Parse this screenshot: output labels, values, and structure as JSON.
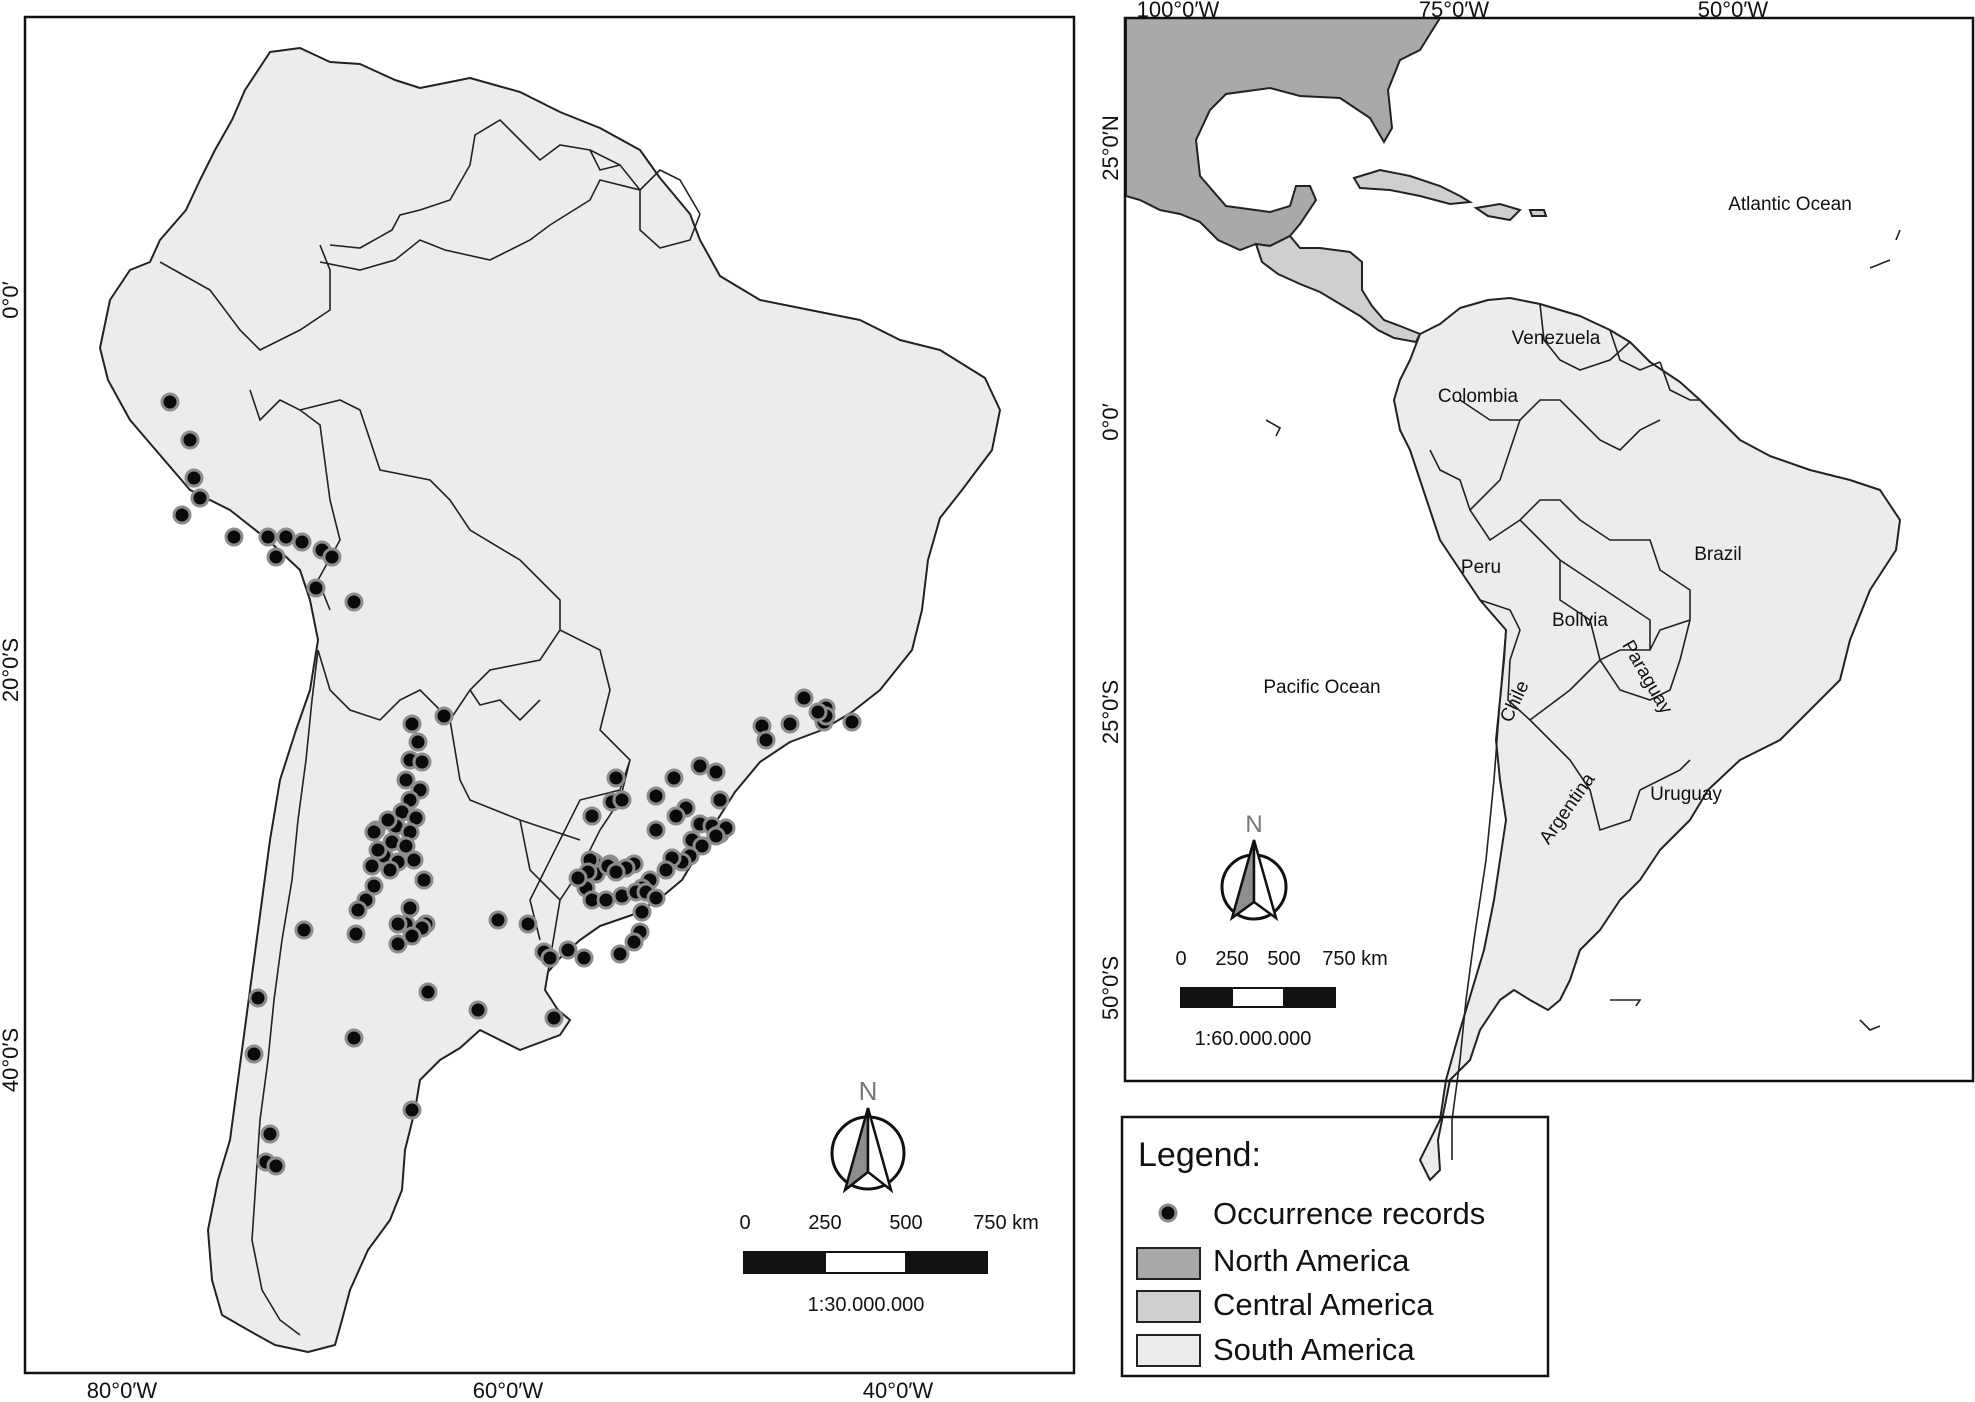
{
  "left_map": {
    "lon_labels": [
      "80°0′W",
      "60°0′W",
      "40°0′W"
    ],
    "lat_labels": [
      "0°0′",
      "20°0′S",
      "40°0′S"
    ],
    "north_label": "N",
    "scale_ticks": [
      "0",
      "250",
      "500",
      "750 km"
    ],
    "scale_ratio": "1:30.000.000"
  },
  "right_map": {
    "lon_labels": [
      "100°0′W",
      "75°0′W",
      "50°0′W"
    ],
    "lat_labels": [
      "25°0′N",
      "0°0′",
      "25°0′S",
      "50°0′S"
    ],
    "north_label": "N",
    "scale_ticks": [
      "0",
      "250",
      "500",
      "750 km"
    ],
    "scale_ratio": "1:60.000.000",
    "places": [
      "Atlantic Ocean",
      "Venezuela",
      "Colombia",
      "Peru",
      "Brazil",
      "Bolivia",
      "Paraguay",
      "Pacific Ocean",
      "Chile",
      "Argentina",
      "Uruguay"
    ]
  },
  "legend": {
    "title": "Legend:",
    "items": [
      {
        "label": "Occurrence records",
        "symbol": "dot",
        "color": "#0a0a0a"
      },
      {
        "label": "North America",
        "symbol": "box",
        "color": "#a9a9a9"
      },
      {
        "label": "Central America",
        "symbol": "box",
        "color": "#cfcfcf"
      },
      {
        "label": "South America",
        "symbol": "box",
        "color": "#ececec"
      }
    ]
  }
}
